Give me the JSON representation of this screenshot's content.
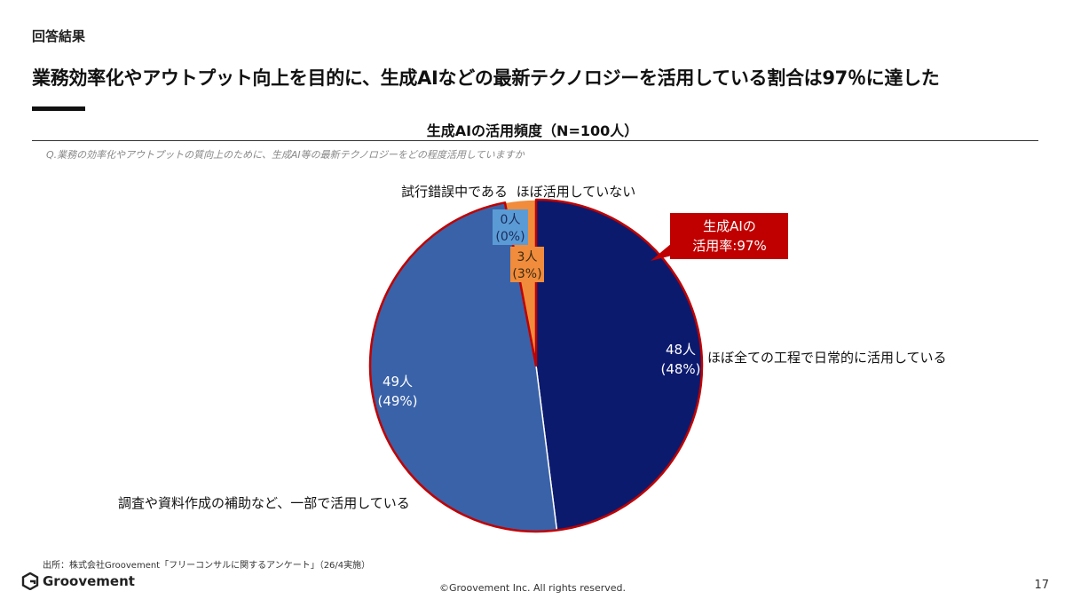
{
  "header": {
    "section_label": "回答結果",
    "headline": "業務効率化やアウトプット向上を目的に、生成AIなどの最新テクノロジーを活用している割合は97％に達した"
  },
  "question": "Q.業務の効率化やアウトプットの質向上のために、生成AI等の最新テクノロジーをどの程度活用していますか",
  "chart_data": {
    "type": "pie",
    "title": "生成AIの活用頻度（N=100人）",
    "slices": [
      {
        "label": "ほぼ全ての工程で日常的に活用している",
        "count_label": "48人",
        "pct_label": "(48%)",
        "value": 48,
        "color": "#0c1a6e"
      },
      {
        "label": "調査や資料作成の補助など、一部で活用している",
        "count_label": "49人",
        "pct_label": "(49%)",
        "value": 49,
        "color": "#3a62a8"
      },
      {
        "label": "試行錯誤中である",
        "count_label": "0人",
        "pct_label": "(0%)",
        "value": 0,
        "color": "#5b9bd5"
      },
      {
        "label": "ほぼ活用していない",
        "count_label": "3人",
        "pct_label": "(3%)",
        "value": 3,
        "color": "#f08c3c"
      }
    ],
    "callout": {
      "line1": "生成AIの",
      "line2": "活用率:97%",
      "color": "#c00000"
    }
  },
  "footer": {
    "source": "出所：株式会社Groovement「フリーコンサルに関するアンケート」（26/4実施）",
    "logo_text": "Groovement",
    "copyright": "©Groovement Inc. All rights reserved.",
    "page_number": "17"
  },
  "colors": {
    "highlight_outline": "#c00000"
  }
}
